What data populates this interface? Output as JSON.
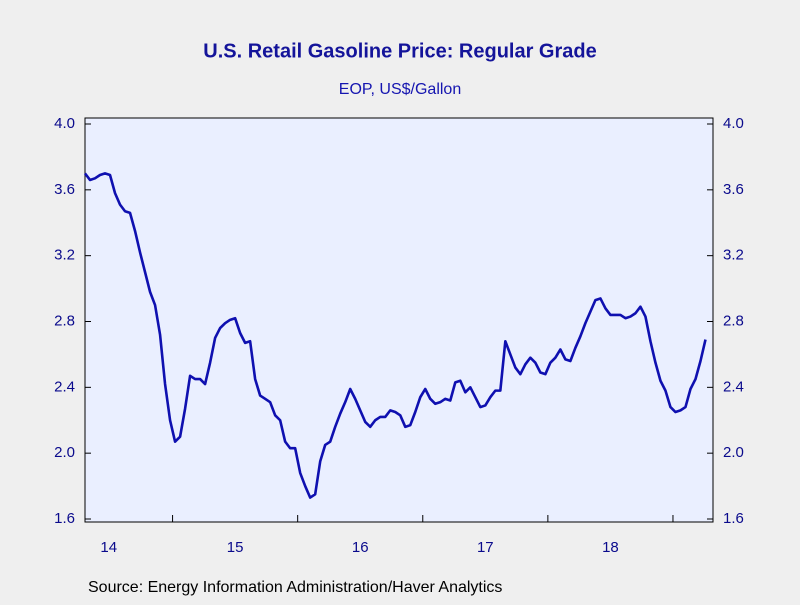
{
  "chart_data": {
    "type": "line",
    "title": "U.S. Retail Gasoline Price: Regular Grade",
    "subtitle": "EOP, US$/Gallon",
    "source": "Source:  Energy Information Administration/Haver Analytics",
    "x": [
      2014.3,
      2014.34,
      2014.38,
      2014.42,
      2014.46,
      2014.5,
      2014.54,
      2014.58,
      2014.62,
      2014.66,
      2014.7,
      2014.74,
      2014.78,
      2014.82,
      2014.86,
      2014.9,
      2014.94,
      2014.98,
      2015.02,
      2015.06,
      2015.1,
      2015.14,
      2015.18,
      2015.22,
      2015.26,
      2015.3,
      2015.34,
      2015.38,
      2015.42,
      2015.46,
      2015.5,
      2015.54,
      2015.58,
      2015.62,
      2015.66,
      2015.7,
      2015.74,
      2015.78,
      2015.82,
      2015.86,
      2015.9,
      2015.94,
      2015.98,
      2016.02,
      2016.06,
      2016.1,
      2016.14,
      2016.18,
      2016.22,
      2016.26,
      2016.3,
      2016.34,
      2016.38,
      2016.42,
      2016.46,
      2016.5,
      2016.54,
      2016.58,
      2016.62,
      2016.66,
      2016.7,
      2016.74,
      2016.78,
      2016.82,
      2016.86,
      2016.9,
      2016.94,
      2016.98,
      2017.02,
      2017.06,
      2017.1,
      2017.14,
      2017.18,
      2017.22,
      2017.26,
      2017.3,
      2017.34,
      2017.38,
      2017.42,
      2017.46,
      2017.5,
      2017.54,
      2017.58,
      2017.62,
      2017.66,
      2017.7,
      2017.74,
      2017.78,
      2017.82,
      2017.86,
      2017.9,
      2017.94,
      2017.98,
      2018.02,
      2018.06,
      2018.1,
      2018.14,
      2018.18,
      2018.22,
      2018.26,
      2018.3,
      2018.34,
      2018.38,
      2018.42,
      2018.46,
      2018.5,
      2018.54,
      2018.58,
      2018.62,
      2018.66,
      2018.7,
      2018.74,
      2018.78,
      2018.82,
      2018.86,
      2018.9,
      2018.94,
      2018.98,
      2019.02,
      2019.06,
      2019.1,
      2019.14,
      2019.18,
      2019.22,
      2019.26
    ],
    "series": [
      {
        "color": "#0f10b0",
        "values": [
          3.7,
          3.66,
          3.67,
          3.69,
          3.7,
          3.69,
          3.58,
          3.51,
          3.47,
          3.46,
          3.35,
          3.22,
          3.1,
          2.98,
          2.9,
          2.72,
          2.42,
          2.2,
          2.07,
          2.1,
          2.27,
          2.47,
          2.45,
          2.45,
          2.42,
          2.55,
          2.7,
          2.76,
          2.79,
          2.81,
          2.82,
          2.73,
          2.67,
          2.68,
          2.45,
          2.35,
          2.33,
          2.31,
          2.23,
          2.2,
          2.07,
          2.03,
          2.03,
          1.88,
          1.8,
          1.73,
          1.75,
          1.95,
          2.05,
          2.07,
          2.16,
          2.24,
          2.31,
          2.39,
          2.33,
          2.26,
          2.19,
          2.16,
          2.2,
          2.22,
          2.22,
          2.26,
          2.25,
          2.23,
          2.16,
          2.17,
          2.25,
          2.34,
          2.39,
          2.33,
          2.3,
          2.31,
          2.33,
          2.32,
          2.43,
          2.44,
          2.37,
          2.4,
          2.34,
          2.28,
          2.29,
          2.34,
          2.38,
          2.38,
          2.68,
          2.6,
          2.52,
          2.48,
          2.54,
          2.58,
          2.55,
          2.49,
          2.48,
          2.55,
          2.58,
          2.63,
          2.57,
          2.56,
          2.64,
          2.71,
          2.79,
          2.86,
          2.93,
          2.94,
          2.88,
          2.84,
          2.84,
          2.84,
          2.82,
          2.83,
          2.85,
          2.89,
          2.83,
          2.68,
          2.55,
          2.44,
          2.38,
          2.28,
          2.25,
          2.26,
          2.28,
          2.39,
          2.45,
          2.56,
          2.69
        ]
      }
    ],
    "xlim": [
      2014.3,
      2019.32
    ],
    "xticks": [
      2015,
      2016,
      2017,
      2018,
      2019
    ],
    "xlabels": [
      {
        "value": 2014.49,
        "label": "14"
      },
      {
        "value": 2015.5,
        "label": "15"
      },
      {
        "value": 2016.5,
        "label": "16"
      },
      {
        "value": 2017.5,
        "label": "17"
      },
      {
        "value": 2018.5,
        "label": "18"
      }
    ],
    "ylim": [
      1.6,
      4.0
    ],
    "yticks": [
      {
        "value": 1.6,
        "label": "1.6"
      },
      {
        "value": 2.0,
        "label": "2.0"
      },
      {
        "value": 2.4,
        "label": "2.4"
      },
      {
        "value": 2.8,
        "label": "2.8"
      },
      {
        "value": 3.2,
        "label": "3.2"
      },
      {
        "value": 3.6,
        "label": "3.6"
      },
      {
        "value": 4.0,
        "label": "4.0"
      }
    ]
  }
}
